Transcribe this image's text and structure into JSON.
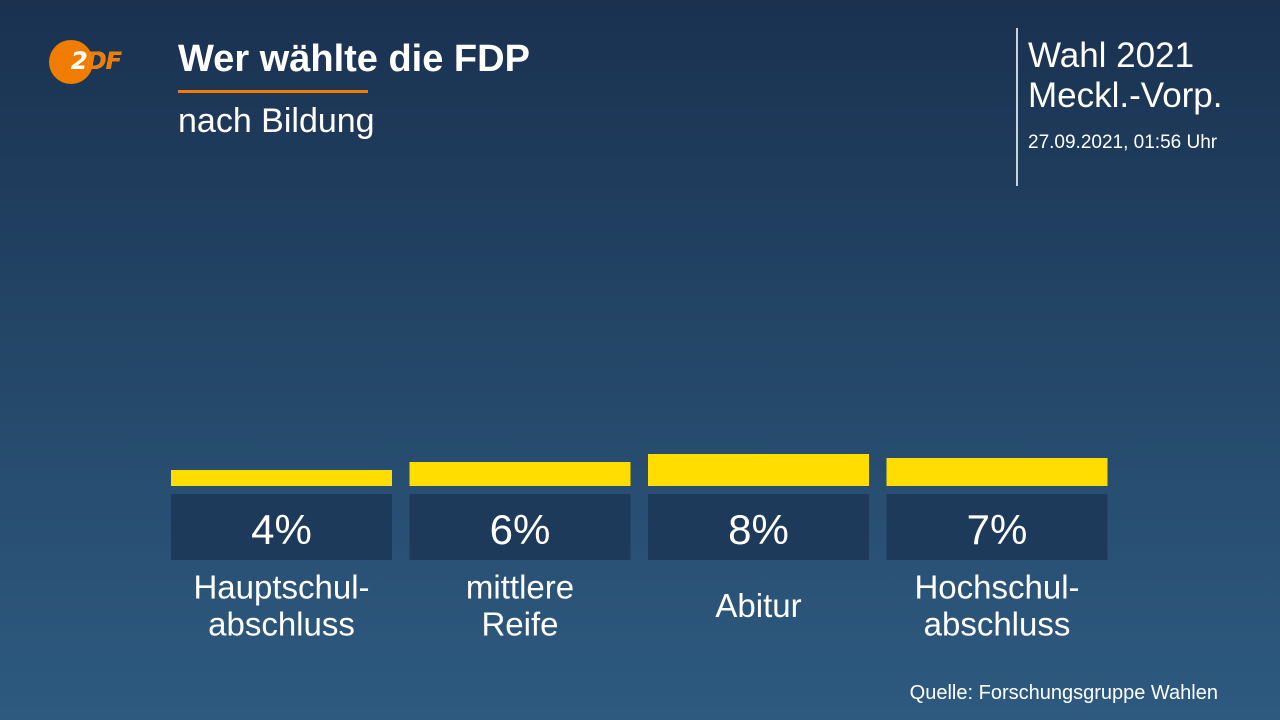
{
  "header": {
    "title": "Wer wählte die FDP",
    "subtitle": "nach Bildung",
    "election_line1": "Wahl 2021",
    "election_line2": "Meckl.-Vorp.",
    "timestamp": "27.09.2021, 01:56 Uhr"
  },
  "logo": {
    "icon": "zdf-logo",
    "text_part1": "2",
    "text_part2": "DF"
  },
  "source": "Quelle: Forschungsgruppe Wahlen",
  "colors": {
    "bar": "#ffdd00",
    "label_box": "#1d3a5a",
    "accent": "#f07d00"
  },
  "chart_data": {
    "type": "bar",
    "title": "Wer wählte die FDP",
    "subtitle": "nach Bildung",
    "categories": [
      [
        "Hauptschul-",
        "abschluss"
      ],
      [
        "mittlere",
        "Reife"
      ],
      [
        "Abitur"
      ],
      [
        "Hochschul-",
        "abschluss"
      ]
    ],
    "values": [
      4,
      6,
      8,
      7
    ],
    "value_labels": [
      "4%",
      "6%",
      "8%",
      "7%"
    ],
    "unit": "%",
    "grid": false,
    "legend": "none"
  }
}
